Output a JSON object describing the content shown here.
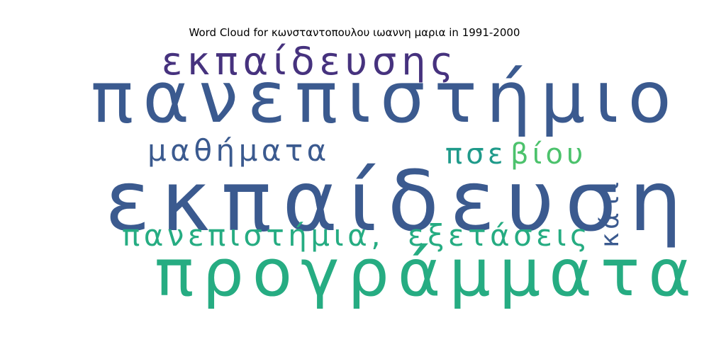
{
  "figure": {
    "title": "Word Cloud for κωνσταντοπουλου ιωαννη μαρια in 1991-2000"
  },
  "words": [
    {
      "text": "εκπαίδευση",
      "color": "#3b5a8f"
    },
    {
      "text": "πανεπιστήμιο",
      "color": "#3b5a8f"
    },
    {
      "text": "προγράμματα",
      "color": "#26ac82"
    },
    {
      "text": "εκπαίδευσης",
      "color": "#46327e"
    },
    {
      "text": "μαθήματα",
      "color": "#3b5a8f"
    },
    {
      "text": "πανεπιστήμια,",
      "color": "#26ac82"
    },
    {
      "text": "εξετάσεις",
      "color": "#26ac82"
    },
    {
      "text": "πσε",
      "color": "#1f9a8a"
    },
    {
      "text": "βίου",
      "color": "#4cc26c"
    },
    {
      "text": "κάτι",
      "color": "#3b5a8f"
    }
  ]
}
